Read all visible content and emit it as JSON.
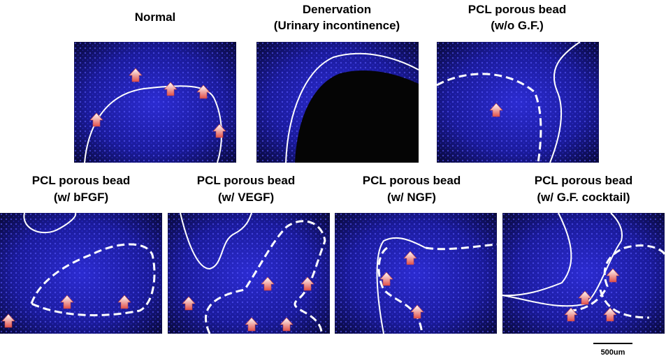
{
  "panels": [
    {
      "title": [
        "Normal"
      ]
    },
    {
      "title": [
        "Denervation",
        "(Urinary incontinence)"
      ]
    },
    {
      "title": [
        "PCL porous bead",
        "(w/o G.F.)"
      ]
    },
    {
      "title": [
        "PCL porous bead",
        "(w/ bFGF)"
      ]
    },
    {
      "title": [
        "PCL porous bead",
        "(w/ VEGF)"
      ]
    },
    {
      "title": [
        "PCL porous bead",
        "(w/ NGF)"
      ]
    },
    {
      "title": [
        "PCL porous bead",
        "(w/ G.F. cocktail)"
      ]
    }
  ],
  "scale_bar": {
    "label": "500um"
  }
}
